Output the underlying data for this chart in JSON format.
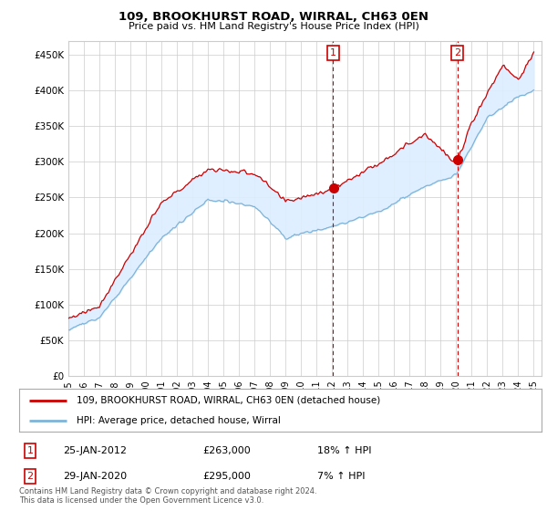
{
  "title": "109, BROOKHURST ROAD, WIRRAL, CH63 0EN",
  "subtitle": "Price paid vs. HM Land Registry's House Price Index (HPI)",
  "ylabel_ticks": [
    "£0",
    "£50K",
    "£100K",
    "£150K",
    "£200K",
    "£250K",
    "£300K",
    "£350K",
    "£400K",
    "£450K"
  ],
  "ytick_values": [
    0,
    50000,
    100000,
    150000,
    200000,
    250000,
    300000,
    350000,
    400000,
    450000
  ],
  "ylim": [
    0,
    470000
  ],
  "xlim_start": 1995.0,
  "xlim_end": 2025.5,
  "sale1_date": 2012.07,
  "sale1_price": 263000,
  "sale1_label": "1",
  "sale1_hpi_text": "18% ↑ HPI",
  "sale1_date_text": "25-JAN-2012",
  "sale2_date": 2020.08,
  "sale2_price": 295000,
  "sale2_label": "2",
  "sale2_hpi_text": "7% ↑ HPI",
  "sale2_date_text": "29-JAN-2020",
  "legend_label_red": "109, BROOKHURST ROAD, WIRRAL, CH63 0EN (detached house)",
  "legend_label_blue": "HPI: Average price, detached house, Wirral",
  "footer": "Contains HM Land Registry data © Crown copyright and database right 2024.\nThis data is licensed under the Open Government Licence v3.0.",
  "red_color": "#cc0000",
  "blue_color": "#7eb4d8",
  "shading_color": "#ddeeff",
  "grid_color": "#cccccc",
  "background_color": "#ffffff"
}
